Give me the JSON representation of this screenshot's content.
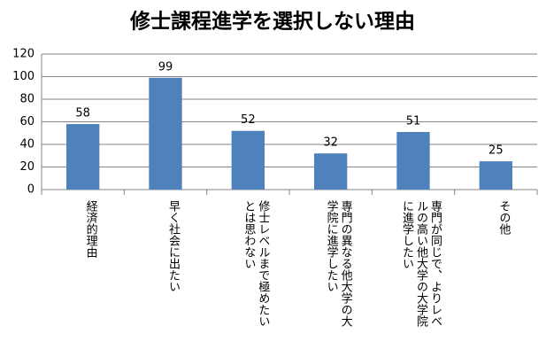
{
  "chart_data": {
    "type": "bar",
    "title": "修士課程進学を選択しない理由",
    "categories": [
      "経済的理由",
      "早く社会に出たい",
      "修士レベルまで極めたいとは思わない",
      "専門の異なる他大学の大学院に進学したい",
      "専門が同じで、よりレベルの高い他大学の大学院に進学したい",
      "その他"
    ],
    "values": [
      58,
      99,
      52,
      32,
      51,
      25
    ],
    "color": "#4f81bd",
    "ylim": [
      0,
      120
    ],
    "yticks": [
      0,
      20,
      40,
      60,
      80,
      100,
      120
    ],
    "grid": true
  }
}
